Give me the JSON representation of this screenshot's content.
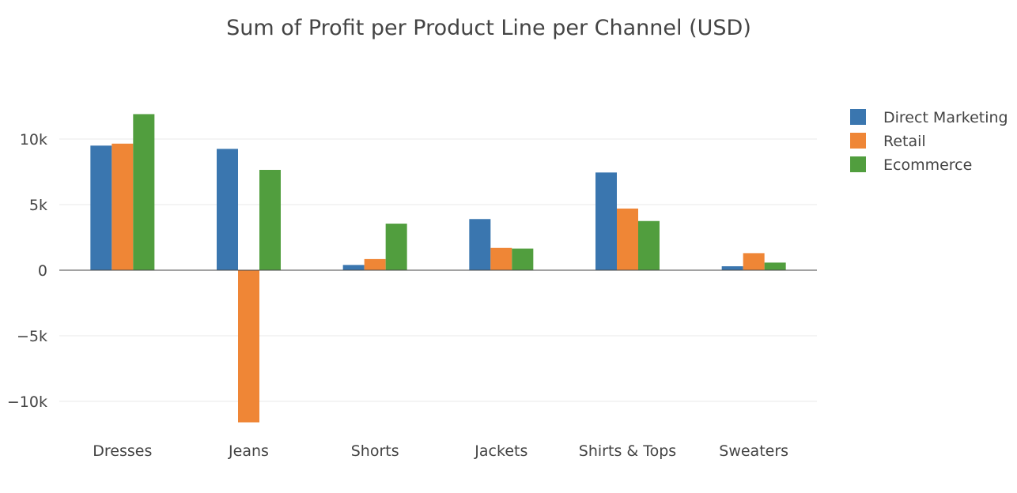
{
  "chart_data": {
    "type": "bar",
    "title": "Sum of Profit per Product Line per Channel (USD)",
    "xlabel": "",
    "ylabel": "",
    "categories": [
      "Dresses",
      "Jeans",
      "Shorts",
      "Jackets",
      "Shirts & Tops",
      "Sweaters"
    ],
    "series": [
      {
        "name": "Direct Marketing",
        "color": "#3a76af",
        "values": [
          9500,
          9250,
          400,
          3900,
          7450,
          300
        ]
      },
      {
        "name": "Retail",
        "color": "#ef8636",
        "values": [
          9650,
          -11600,
          850,
          1700,
          4700,
          1300
        ]
      },
      {
        "name": "Ecommerce",
        "color": "#519e3e",
        "values": [
          11900,
          7650,
          3550,
          1650,
          3750,
          580
        ]
      }
    ],
    "ylim": [
      -12000,
      14000
    ],
    "yticks": [
      10000,
      5000,
      0,
      -5000,
      -10000
    ],
    "ytick_labels": [
      "10k",
      "5k",
      "0",
      "−5k",
      "−10k"
    ],
    "grid": true,
    "legend_position": "top-right"
  }
}
